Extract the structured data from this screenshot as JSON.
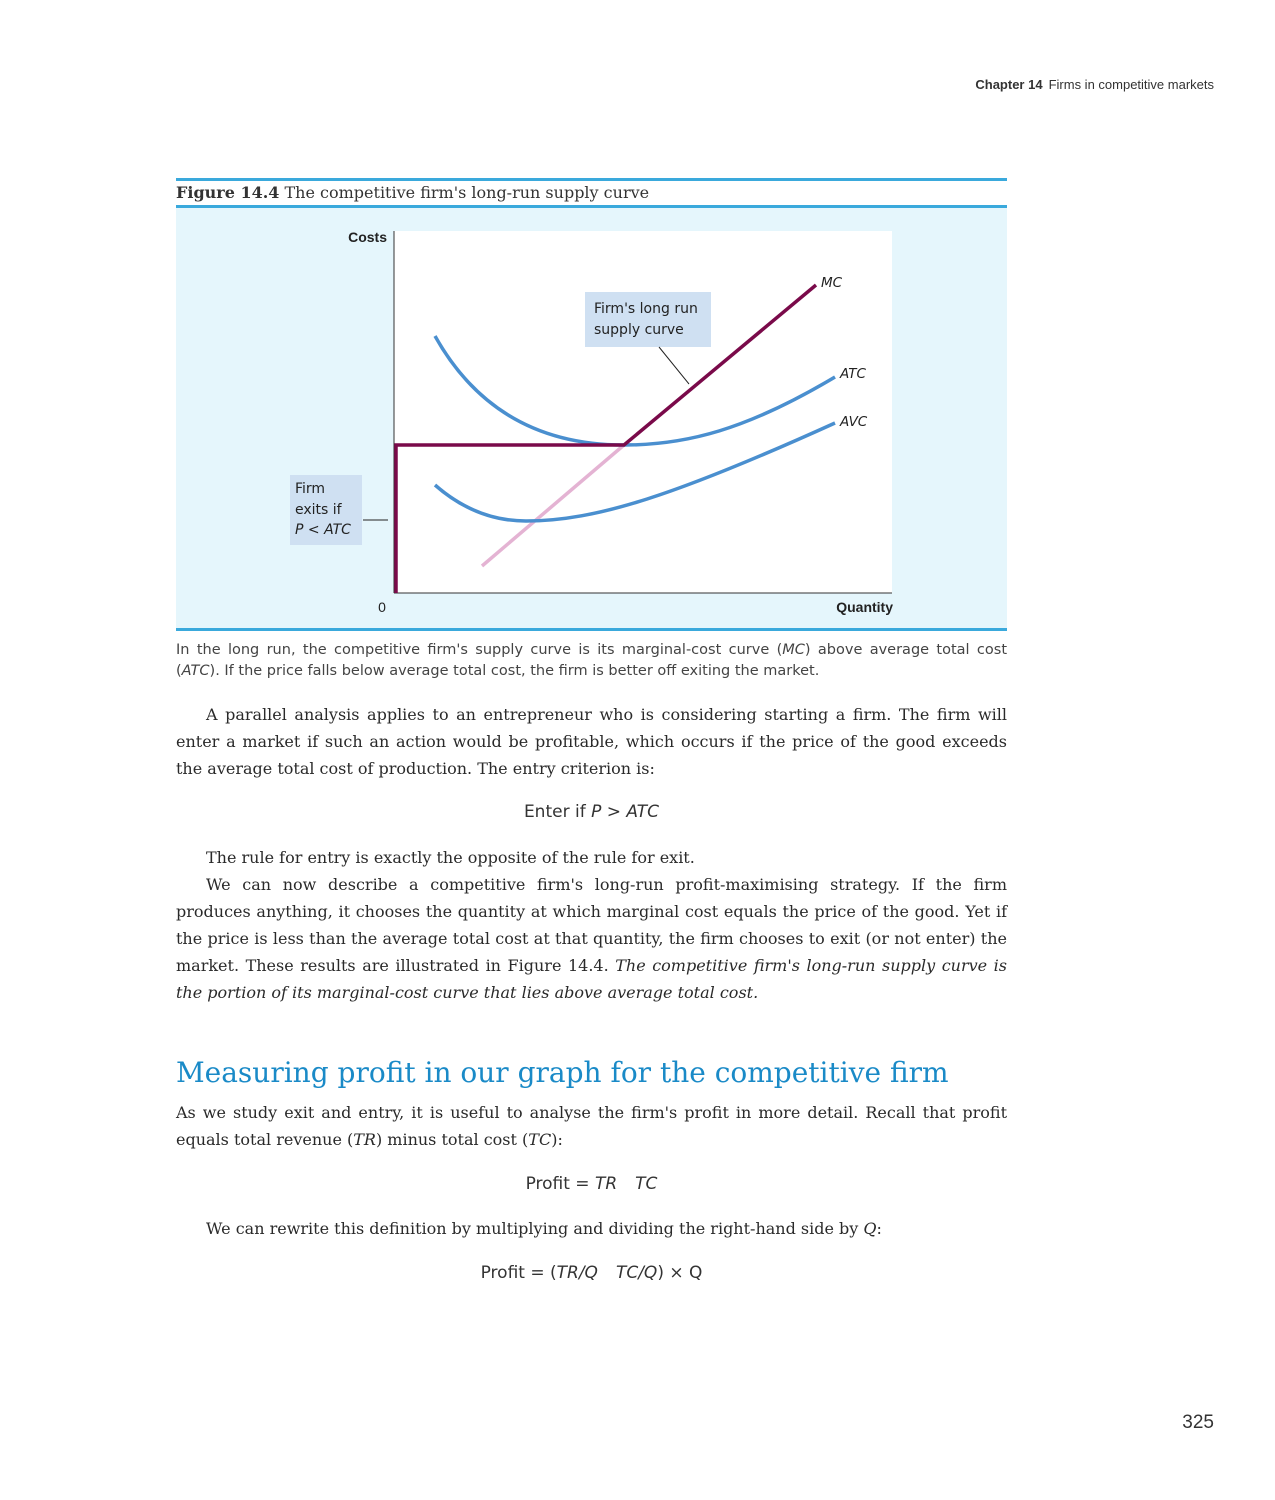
{
  "header": {
    "chapter": "Chapter 14",
    "chapter_title": "Firms in competitive markets"
  },
  "figure": {
    "number": "Figure 14.4",
    "title": "The competitive firm's long-run supply curve",
    "callout_supply_line1": "Firm's long run",
    "callout_supply_line2": "supply curve",
    "callout_exit_line1": "Firm",
    "callout_exit_line2": "exits if",
    "callout_exit_line3": "P < ATC",
    "colors": {
      "panel_bg": "#e5f6fc",
      "rule": "#3aa9dc",
      "cost_curves": "#4a8fcf",
      "supply_curve": "#7a0a4a",
      "mc_below_atc": "#e4b3d3",
      "callout_bg": "#cfe0f2"
    }
  },
  "chart_data": {
    "type": "line",
    "xlabel": "Quantity",
    "ylabel": "Costs",
    "origin_label": "0",
    "series": [
      {
        "name": "MC"
      },
      {
        "name": "ATC"
      },
      {
        "name": "AVC"
      }
    ]
  },
  "caption": {
    "text_1": "In the long run, the competitive firm's supply curve is its marginal-cost curve (",
    "mc": "MC",
    "text_2": ") above average total cost (",
    "atc": "ATC",
    "text_3": "). If the price falls below average total cost, the firm is better off exiting the market."
  },
  "body": {
    "para1": "A parallel analysis applies to an entrepreneur who is considering starting a firm. The firm will enter a market if such an action would be profitable, which occurs if the price of the good exceeds the average total cost of production. The entry criterion is:",
    "eq1_prefix": "Enter if ",
    "eq1_math": "P > ATC",
    "para2": "The rule for entry is exactly the opposite of the rule for exit.",
    "para3_normal": "We can now describe a competitive firm's long-run profit-maximising strategy. If the firm produces anything, it chooses the quantity at which marginal cost equals the price of the good. Yet if the price is less than the average total cost at that quantity, the firm chooses to exit (or not enter) the market. These results are illustrated in Figure 14.4. ",
    "para3_italic": "The competitive firm's long-run supply curve is the portion of its marginal-cost curve that lies above average total cost.",
    "section_heading": "Measuring profit in our graph for the competitive firm",
    "para4_a": "As we study exit and entry, it is useful to analyse the firm's profit in more detail. Recall that profit equals total revenue (",
    "para4_tr": "TR",
    "para4_b": ") minus total cost (",
    "para4_tc": "TC",
    "para4_c": "):",
    "eq2_prefix": "Profit = ",
    "eq2_tr": "TR",
    "eq2_tc": "TC",
    "para5_a": "We can rewrite this definition by multiplying and dividing the right-hand side by ",
    "para5_q": "Q",
    "para5_b": ":",
    "eq3_prefix": "Profit = (",
    "eq3_trq": "TR/Q",
    "eq3_tcq": "TC/Q",
    "eq3_suffix": ") × Q"
  },
  "page_number": "325"
}
